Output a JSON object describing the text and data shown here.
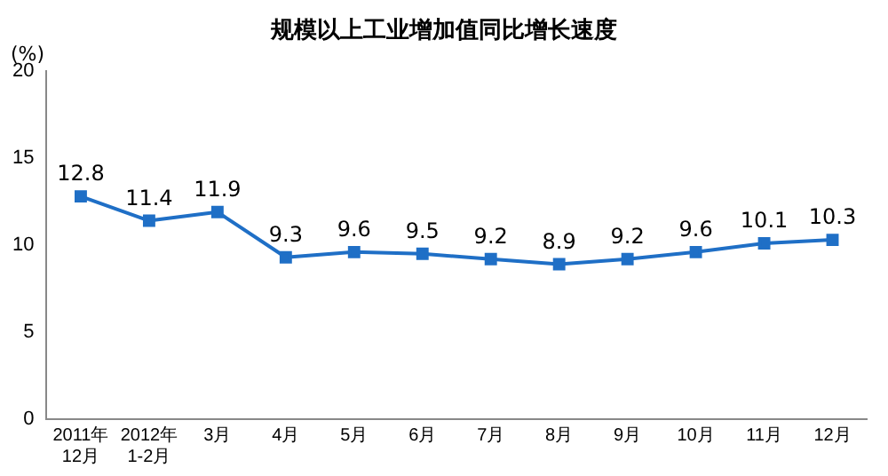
{
  "chart_data": {
    "type": "line",
    "title": "规模以上工业增加值同比增长速度",
    "ylabel": "(%)",
    "categories": [
      "2011年\n12月",
      "2012年\n1-2月",
      "3月",
      "4月",
      "5月",
      "6月",
      "7月",
      "8月",
      "9月",
      "10月",
      "11月",
      "12月"
    ],
    "series": [
      {
        "color": "#1f6fc6",
        "values": [
          12.8,
          11.4,
          11.9,
          9.3,
          9.6,
          9.5,
          9.2,
          8.9,
          9.2,
          9.6,
          10.1,
          10.3
        ]
      }
    ],
    "ylim": [
      0,
      20
    ],
    "yticks": [
      0,
      5,
      10,
      15,
      20
    ],
    "grid": false,
    "legend": false,
    "marker": "square",
    "line_style": "solid",
    "data_labels": true
  }
}
